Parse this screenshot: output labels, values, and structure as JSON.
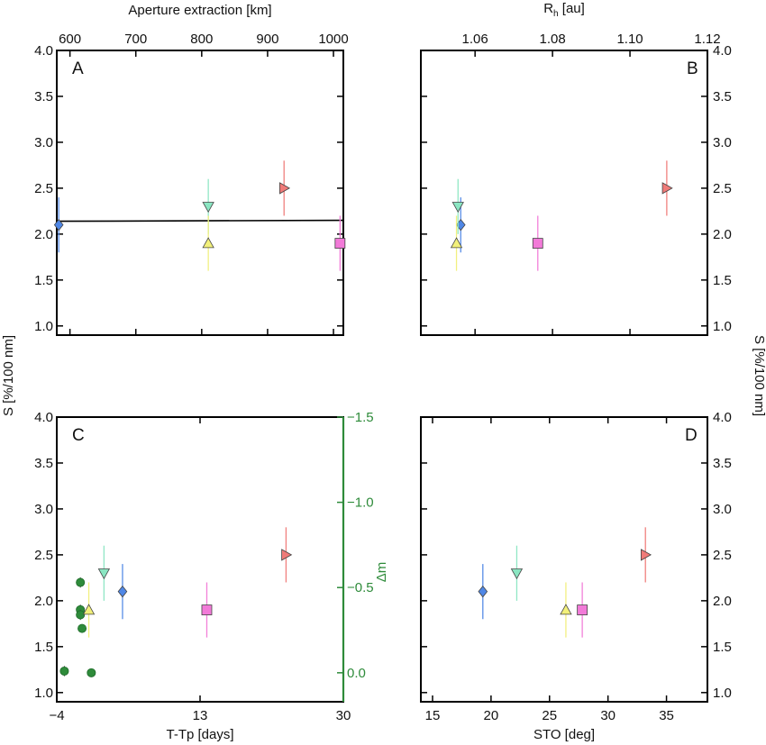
{
  "colors": {
    "blue": "#4f87e6",
    "green": "#8be6c2",
    "yellow": "#f2f07a",
    "pink": "#f27ad8",
    "red": "#f07a78",
    "dm_green": "#2e8b3a",
    "line": "#000000"
  },
  "labels": {
    "ylabel": "S [%/100 nm]",
    "ylabel_right": "S [%/100 nm]",
    "top_left_xlabel": "Aperture extraction [km]",
    "top_right_xlabel": "R",
    "top_right_xlabel_sub": "h",
    "top_right_xlabel_rest": " [au]",
    "bottom_left_xlabel": "T-Tp [days]",
    "bottom_right_xlabel": "STO [deg]",
    "dm_label": "Δm"
  },
  "chart_data": [
    {
      "panel": "A",
      "type": "scatter",
      "xlabel": "Aperture extraction [km]",
      "xlabel_position": "top",
      "xlim": [
        580,
        1015
      ],
      "xticks": [
        "600",
        "700",
        "800",
        "900",
        "1000"
      ],
      "xtick_values": [
        600,
        700,
        800,
        900,
        1000
      ],
      "ylabel": "S [%/100 nm]",
      "ylim": [
        0.9,
        4.0
      ],
      "yticks": [
        "1.0",
        "1.5",
        "2.0",
        "2.5",
        "3.0",
        "3.5",
        "4.0"
      ],
      "points": [
        {
          "marker": "diamond",
          "color": "blue",
          "x": 583,
          "y": 2.1,
          "err": 0.3
        },
        {
          "marker": "triangle-down",
          "color": "green",
          "x": 810,
          "y": 2.3,
          "err": 0.3
        },
        {
          "marker": "triangle-up",
          "color": "yellow",
          "x": 810,
          "y": 1.9,
          "err": 0.3
        },
        {
          "marker": "triangle-right",
          "color": "red",
          "x": 925,
          "y": 2.5,
          "err": 0.3
        },
        {
          "marker": "square",
          "color": "pink",
          "x": 1010,
          "y": 1.9,
          "err": 0.3
        }
      ],
      "fit_line": {
        "x": [
          580,
          1015
        ],
        "y": [
          2.14,
          2.15
        ]
      }
    },
    {
      "panel": "B",
      "type": "scatter",
      "xlabel": "R h [au]",
      "xlabel_position": "top",
      "xlim": [
        1.046,
        1.12
      ],
      "xticks": [
        "1.06",
        "1.08",
        "1.10",
        "1.12"
      ],
      "xtick_values": [
        1.06,
        1.08,
        1.1,
        1.12
      ],
      "ylabel": "S [%/100 nm]",
      "ylabel_position": "right",
      "ylim": [
        0.9,
        4.0
      ],
      "yticks": [
        "1.0",
        "1.5",
        "2.0",
        "2.5",
        "3.0",
        "3.5",
        "4.0"
      ],
      "points": [
        {
          "marker": "diamond",
          "color": "blue",
          "x": 1.0563,
          "y": 2.1,
          "err": 0.3
        },
        {
          "marker": "triangle-down",
          "color": "green",
          "x": 1.0556,
          "y": 2.3,
          "err": 0.3
        },
        {
          "marker": "triangle-up",
          "color": "yellow",
          "x": 1.0552,
          "y": 1.9,
          "err": 0.3
        },
        {
          "marker": "triangle-right",
          "color": "red",
          "x": 1.1095,
          "y": 2.5,
          "err": 0.3
        },
        {
          "marker": "square",
          "color": "pink",
          "x": 1.0762,
          "y": 1.9,
          "err": 0.3
        }
      ]
    },
    {
      "panel": "C",
      "type": "scatter",
      "xlabel": "T-Tp [days]",
      "xlim": [
        -4,
        30
      ],
      "xticks": [
        "−4",
        "13",
        "30"
      ],
      "xtick_values": [
        -4,
        13,
        30
      ],
      "ylabel": "S [%/100 nm]",
      "ylim": [
        0.9,
        4.0
      ],
      "yticks": [
        "1.0",
        "1.5",
        "2.0",
        "2.5",
        "3.0",
        "3.5",
        "4.0"
      ],
      "right_axis": {
        "label": "Δm",
        "lim_bottom": 0.17,
        "lim_top": -1.5,
        "ticks": [
          "−1.5",
          "−1.0",
          "−0.5",
          "0.0"
        ],
        "tick_values": [
          -1.5,
          -1.0,
          -0.5,
          0.0
        ]
      },
      "points": [
        {
          "marker": "diamond",
          "color": "blue",
          "x": 3.8,
          "y": 2.1,
          "err": 0.3
        },
        {
          "marker": "triangle-down",
          "color": "green",
          "x": 1.6,
          "y": 2.3,
          "err": 0.3
        },
        {
          "marker": "triangle-up",
          "color": "yellow",
          "x": -0.2,
          "y": 1.9,
          "err": 0.3
        },
        {
          "marker": "triangle-right",
          "color": "red",
          "x": 23.2,
          "y": 2.5,
          "err": 0.3
        },
        {
          "marker": "square",
          "color": "pink",
          "x": 13.8,
          "y": 1.9,
          "err": 0.3
        }
      ],
      "dm_points": [
        {
          "x": -3.1,
          "dm": -0.01,
          "err": 0.03
        },
        {
          "x": -1.2,
          "dm": -0.53,
          "err": 0.03
        },
        {
          "x": -1.2,
          "dm": -0.37,
          "err": 0.03
        },
        {
          "x": -1.2,
          "dm": -0.34,
          "err": 0.03
        },
        {
          "x": -1.0,
          "dm": -0.26,
          "err": 0.02
        },
        {
          "x": 0.1,
          "dm": 0.0,
          "err": 0.02
        }
      ]
    },
    {
      "panel": "D",
      "type": "scatter",
      "xlabel": "STO [deg]",
      "xlim": [
        14,
        38.5
      ],
      "xticks": [
        "15",
        "20",
        "25",
        "30",
        "35"
      ],
      "xtick_values": [
        15,
        20,
        25,
        30,
        35
      ],
      "ylabel": "S [%/100 nm]",
      "ylabel_position": "right",
      "ylim": [
        0.9,
        4.0
      ],
      "yticks": [
        "1.0",
        "1.5",
        "2.0",
        "2.5",
        "3.0",
        "3.5",
        "4.0"
      ],
      "points": [
        {
          "marker": "diamond",
          "color": "blue",
          "x": 19.3,
          "y": 2.1,
          "err": 0.3
        },
        {
          "marker": "triangle-down",
          "color": "green",
          "x": 22.2,
          "y": 2.3,
          "err": 0.3
        },
        {
          "marker": "triangle-up",
          "color": "yellow",
          "x": 26.4,
          "y": 1.9,
          "err": 0.3
        },
        {
          "marker": "triangle-right",
          "color": "red",
          "x": 33.2,
          "y": 2.5,
          "err": 0.3
        },
        {
          "marker": "square",
          "color": "pink",
          "x": 27.8,
          "y": 1.9,
          "err": 0.3
        }
      ]
    }
  ]
}
